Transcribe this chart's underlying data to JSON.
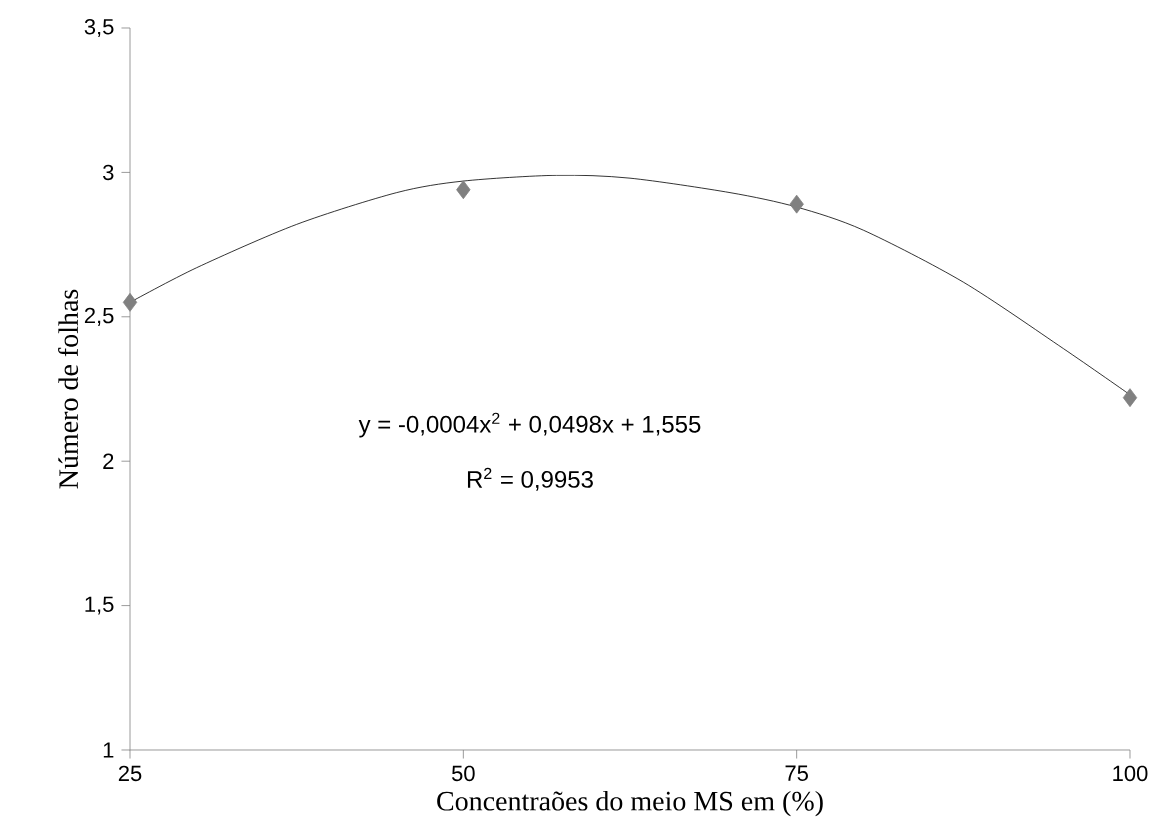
{
  "chart_data": {
    "type": "scatter",
    "xlabel": "Concentraões do meio MS em (%)",
    "ylabel": "Número de folhas",
    "xlim": [
      25,
      100
    ],
    "xticks": [
      25,
      50,
      75,
      100
    ],
    "ylim": [
      1,
      3.5
    ],
    "yticks": [
      1,
      {
        "value": 1.5,
        "label": "1,5"
      },
      2,
      {
        "value": 2.5,
        "label": "2,5"
      },
      3,
      {
        "value": 3.5,
        "label": "3,5"
      }
    ],
    "marker": "diamond",
    "grid": false,
    "series": [
      {
        "color": "#808080",
        "x": [
          25,
          50,
          75,
          100
        ],
        "values": [
          2.55,
          2.94,
          2.89,
          2.22
        ]
      },
      {
        "type": "line",
        "color": "#000000",
        "marker": "none",
        "x": [
          25,
          30,
          37.5,
          45,
          50,
          57,
          62.5,
          70,
          75,
          80,
          87.5,
          95,
          100
        ],
        "values": [
          2.55,
          2.67,
          2.82,
          2.93,
          2.97,
          2.99,
          2.98,
          2.93,
          2.88,
          2.8,
          2.62,
          2.39,
          2.23
        ]
      }
    ],
    "annotations": [
      "y = -0,0004x$^{2}$ + 0,0498x + 1,555",
      "R$^{2}$ = 0,9953"
    ]
  }
}
